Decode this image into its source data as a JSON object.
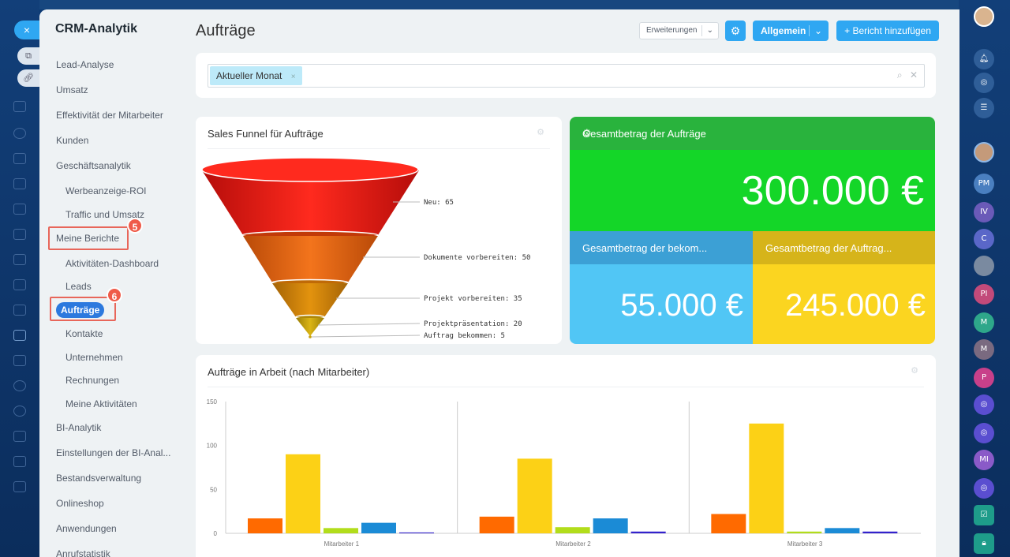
{
  "background_app": {
    "close_label": "×",
    "side_icons": [
      "external-link-icon",
      "link-icon"
    ]
  },
  "sidebar": {
    "title": "CRM-Analytik",
    "items": [
      {
        "label": "Lead-Analyse"
      },
      {
        "label": "Umsatz"
      },
      {
        "label": "Effektivität der Mitarbeiter"
      },
      {
        "label": "Kunden"
      },
      {
        "label": "Geschäftsanalytik"
      },
      {
        "label": "Werbeanzeige-ROI"
      },
      {
        "label": "Traffic und Umsatz"
      },
      {
        "label": "Meine Berichte"
      },
      {
        "label": "Aktivitäten-Dashboard"
      },
      {
        "label": "Leads"
      },
      {
        "label": "Aufträge"
      },
      {
        "label": "Kontakte"
      },
      {
        "label": "Unternehmen"
      },
      {
        "label": "Rechnungen"
      },
      {
        "label": "Meine Aktivitäten"
      },
      {
        "label": "BI-Analytik"
      },
      {
        "label": "Einstellungen der BI-Anal..."
      },
      {
        "label": "Bestandsverwaltung"
      },
      {
        "label": "Onlineshop"
      },
      {
        "label": "Anwendungen"
      },
      {
        "label": "Anrufstatistik"
      }
    ],
    "step_badges": [
      "5",
      "6"
    ]
  },
  "header": {
    "title": "Aufträge",
    "extensions_label": "Erweiterungen",
    "general_label": "Allgemein",
    "add_report_label": "+ Bericht hinzufügen"
  },
  "filter": {
    "chip_label": "Aktueller Monat",
    "chip_remove": "×"
  },
  "funnel": {
    "title": "Sales Funnel für Aufträge",
    "colors": [
      "#e8150f",
      "#e5610e",
      "#d4820a",
      "#c8a10d"
    ],
    "stages": [
      {
        "label": "Neu: 65"
      },
      {
        "label": "Dokumente vorbereiten: 50"
      },
      {
        "label": "Projekt vorbereiten: 35"
      },
      {
        "label": "Projektpräsentation: 20"
      },
      {
        "label": "Auftrag bekommen: 5"
      }
    ]
  },
  "kpi": {
    "main_title": "Gesamtbetrag der Aufträge",
    "main_value": "300.000 €",
    "sub1_title": "Gesamtbetrag der bekom...",
    "sub1_value": "55.000 €",
    "sub2_title": "Gesamtbetrag der Auftrag...",
    "sub2_value": "245.000 €",
    "colors": {
      "green": "#14d628",
      "blue": "#51c6f5",
      "yellow": "#fbd520"
    }
  },
  "chart_data": {
    "type": "bar",
    "title": "Aufträge in Arbeit (nach Mitarbeiter)",
    "categories": [
      "Mitarbeiter 1",
      "Mitarbeiter 2",
      "Mitarbeiter 3"
    ],
    "ylim": [
      0,
      150
    ],
    "yticks": [
      0,
      50,
      100,
      150
    ],
    "series": [
      {
        "color": "#ff6a00",
        "values": [
          17,
          19,
          22
        ]
      },
      {
        "color": "#fcd116",
        "values": [
          90,
          85,
          125
        ]
      },
      {
        "color": "#b2dd1b",
        "values": [
          6,
          7,
          2
        ]
      },
      {
        "color": "#1b8bd6",
        "values": [
          12,
          17,
          6
        ]
      },
      {
        "color": "#3322cc",
        "values": [
          1,
          2,
          2
        ]
      }
    ]
  },
  "rail": {
    "avatars": [
      "PM",
      "IV",
      "C",
      "PI",
      "M",
      "M",
      "P",
      "MI"
    ]
  }
}
